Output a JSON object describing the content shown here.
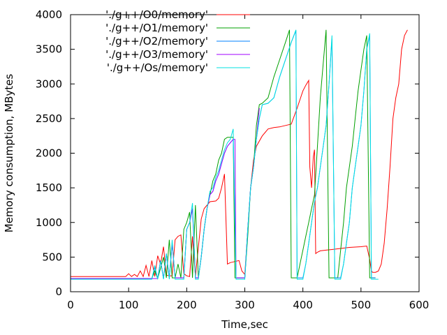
{
  "chart_data": {
    "type": "line",
    "title": "",
    "xlabel": "Time,sec",
    "ylabel": "Memory consumption, MBytes",
    "xlim": [
      0,
      600
    ],
    "ylim": [
      0,
      4000
    ],
    "xticks": [
      0,
      100,
      200,
      300,
      400,
      500,
      600
    ],
    "yticks": [
      0,
      500,
      1000,
      1500,
      2000,
      2500,
      3000,
      3500,
      4000
    ],
    "xtick_labels": [
      "0",
      "100",
      "200",
      "300",
      "400",
      "500",
      "600"
    ],
    "ytick_labels": [
      "0",
      "500",
      "1000",
      "1500",
      "2000",
      "2500",
      "3000",
      "3500",
      "4000"
    ],
    "legend_position": "top-left",
    "series": [
      {
        "name": "'./g++/O0/memory'",
        "color": "#ff0000",
        "x": [
          0,
          85,
          95,
          100,
          105,
          110,
          115,
          120,
          125,
          130,
          135,
          140,
          145,
          150,
          155,
          160,
          165,
          170,
          175,
          180,
          185,
          190,
          195,
          200,
          205,
          210,
          215,
          225,
          230,
          240,
          250,
          255,
          260,
          265,
          270,
          275,
          280,
          285,
          290,
          295,
          300,
          310,
          315,
          320,
          330,
          340,
          350,
          360,
          370,
          380,
          390,
          400,
          405,
          410,
          412,
          415,
          418,
          420,
          422,
          425,
          430,
          440,
          450,
          460,
          470,
          480,
          490,
          500,
          510,
          515,
          518,
          520,
          525,
          530,
          535,
          540,
          545,
          550,
          555,
          560,
          565,
          570,
          575,
          580
        ],
        "values": [
          220,
          220,
          220,
          260,
          220,
          250,
          220,
          300,
          220,
          380,
          220,
          450,
          220,
          520,
          400,
          650,
          240,
          230,
          230,
          750,
          800,
          820,
          260,
          230,
          220,
          800,
          220,
          1050,
          1200,
          1300,
          1310,
          1350,
          1500,
          1700,
          400,
          420,
          430,
          440,
          450,
          300,
          250,
          1500,
          1900,
          2100,
          2250,
          2350,
          2370,
          2380,
          2400,
          2420,
          2650,
          2900,
          2980,
          3050,
          1800,
          1500,
          1950,
          2050,
          550,
          570,
          590,
          600,
          610,
          620,
          630,
          640,
          645,
          650,
          660,
          470,
          300,
          280,
          280,
          300,
          400,
          700,
          1200,
          1800,
          2500,
          2800,
          3000,
          3500,
          3700,
          3780
        ]
      },
      {
        "name": "'./g++/O1/memory'",
        "color": "#00a000",
        "x": [
          0,
          120,
          140,
          145,
          150,
          160,
          165,
          170,
          175,
          180,
          185,
          190,
          195,
          200,
          205,
          210,
          215,
          220,
          225,
          230,
          235,
          240,
          245,
          250,
          255,
          260,
          265,
          270,
          275,
          280,
          283,
          285,
          290,
          295,
          300,
          305,
          310,
          315,
          320,
          325,
          330,
          340,
          350,
          360,
          370,
          377,
          380,
          385,
          390,
          395,
          400,
          405,
          410,
          415,
          420,
          425,
          430,
          435,
          440,
          445,
          450,
          455,
          460,
          465,
          470,
          475,
          480,
          485,
          490,
          495,
          500,
          505,
          510,
          515,
          520,
          525
        ],
        "values": [
          185,
          185,
          190,
          300,
          190,
          500,
          200,
          750,
          200,
          200,
          400,
          200,
          900,
          1000,
          1150,
          200,
          1250,
          200,
          500,
          900,
          1200,
          1400,
          1600,
          1700,
          1900,
          2000,
          2200,
          2230,
          2230,
          2230,
          200,
          200,
          200,
          200,
          200,
          800,
          1500,
          1800,
          2400,
          2700,
          2720,
          2800,
          3100,
          3350,
          3600,
          3780,
          200,
          200,
          200,
          400,
          600,
          800,
          1000,
          1200,
          1400,
          2100,
          2800,
          3300,
          3780,
          200,
          200,
          200,
          200,
          600,
          1000,
          1500,
          1800,
          2100,
          2500,
          2900,
          3200,
          3500,
          3700,
          200,
          200,
          200
        ]
      },
      {
        "name": "'./g++/O2/memory'",
        "color": "#0080ff",
        "x": [
          0,
          120,
          140,
          145,
          150,
          155,
          160,
          165,
          170,
          175,
          180,
          185,
          190,
          195,
          200,
          205,
          210,
          215,
          220,
          225,
          230,
          235,
          240,
          245,
          250,
          255,
          260,
          265,
          270,
          275,
          280,
          285,
          288,
          290,
          295,
          300,
          305,
          310,
          315,
          320,
          325,
          330,
          340,
          350,
          360,
          370,
          380,
          388,
          390,
          395,
          400,
          405,
          410,
          415,
          420,
          425,
          430,
          435,
          440,
          445,
          450,
          455,
          460,
          465,
          470,
          475,
          480,
          485,
          490,
          495,
          500,
          505,
          510,
          515,
          518,
          520,
          525
        ],
        "values": [
          190,
          190,
          190,
          350,
          190,
          450,
          190,
          550,
          200,
          700,
          200,
          200,
          200,
          200,
          900,
          1000,
          1200,
          200,
          200,
          500,
          900,
          1200,
          1400,
          1450,
          1600,
          1700,
          1850,
          2000,
          2100,
          2150,
          2200,
          200,
          200,
          200,
          200,
          200,
          900,
          1500,
          1800,
          2200,
          2500,
          2700,
          2720,
          2800,
          3100,
          3350,
          3600,
          3770,
          200,
          200,
          200,
          400,
          700,
          1000,
          1300,
          1500,
          1800,
          2100,
          2400,
          3000,
          3650,
          200,
          200,
          200,
          400,
          700,
          1000,
          1500,
          1800,
          2100,
          2400,
          2900,
          3500,
          3700,
          200,
          200,
          200
        ]
      },
      {
        "name": "'./g++/O3/memory'",
        "color": "#a000ff",
        "x": [
          0,
          120,
          140,
          150,
          155,
          160,
          165,
          170,
          175,
          180,
          185,
          190,
          195,
          200,
          205,
          210,
          215,
          220,
          225,
          230,
          235,
          240,
          245,
          250,
          255,
          260,
          265,
          270,
          275,
          280,
          283,
          285,
          290,
          295,
          300,
          305,
          310,
          315,
          320,
          325
        ],
        "values": [
          190,
          190,
          190,
          190,
          450,
          190,
          550,
          200,
          700,
          200,
          200,
          200,
          200,
          900,
          1000,
          1200,
          200,
          200,
          500,
          900,
          1200,
          1400,
          1450,
          1600,
          1700,
          1850,
          2000,
          2100,
          2150,
          2200,
          2200,
          200,
          200,
          200,
          200,
          900,
          1500,
          1800,
          2200,
          2650
        ]
      },
      {
        "name": "'./g++/Os/memory'",
        "color": "#00e0e0",
        "x": [
          0,
          120,
          140,
          145,
          150,
          155,
          160,
          165,
          170,
          175,
          180,
          185,
          190,
          195,
          200,
          205,
          210,
          215,
          220,
          225,
          230,
          235,
          240,
          245,
          250,
          255,
          260,
          265,
          270,
          275,
          280,
          285,
          288,
          290,
          295,
          300,
          305,
          310,
          315,
          320,
          325,
          330,
          340,
          350,
          360,
          370,
          380,
          388,
          390,
          395,
          400,
          405,
          410,
          415,
          420,
          425,
          430,
          435,
          440,
          445,
          450,
          455,
          460,
          465,
          470,
          475,
          480,
          485,
          490,
          495,
          500,
          505,
          510,
          515,
          518,
          520,
          530
        ],
        "values": [
          180,
          180,
          180,
          380,
          180,
          450,
          180,
          550,
          180,
          750,
          180,
          180,
          180,
          180,
          900,
          1000,
          1280,
          180,
          180,
          500,
          900,
          1200,
          1450,
          1500,
          1650,
          1750,
          1900,
          2050,
          2150,
          2200,
          2350,
          180,
          180,
          180,
          180,
          180,
          900,
          1500,
          1800,
          2200,
          2500,
          2700,
          2720,
          2800,
          3100,
          3350,
          3600,
          3780,
          180,
          180,
          180,
          400,
          700,
          1000,
          1300,
          1500,
          1800,
          2100,
          2400,
          3000,
          3700,
          180,
          180,
          180,
          400,
          700,
          1000,
          1500,
          1800,
          2100,
          2400,
          2900,
          3500,
          3730,
          180,
          180,
          180
        ]
      }
    ]
  }
}
